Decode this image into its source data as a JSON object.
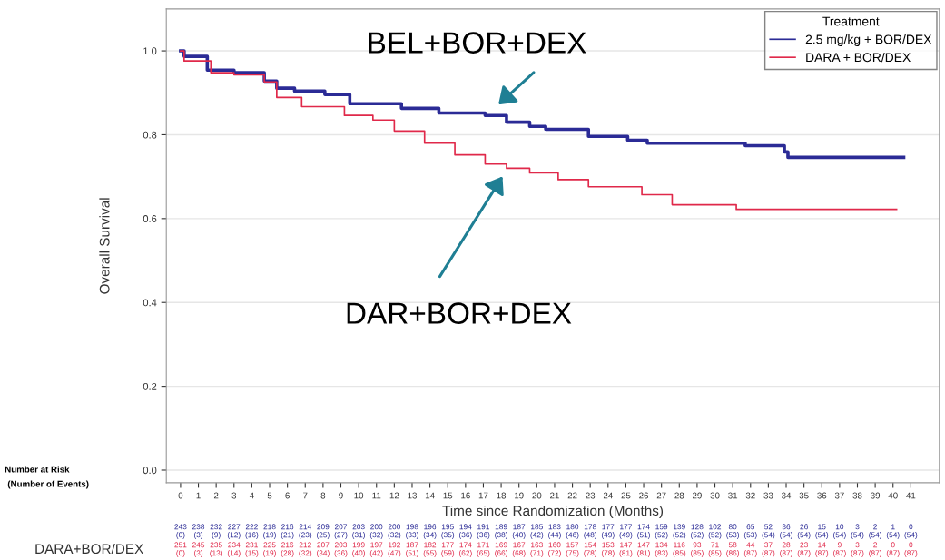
{
  "chart_data": {
    "type": "step",
    "xlabel": "Time since Randomization (Months)",
    "ylabel": "Overall Survival",
    "legend_title": "Treatment",
    "legend": "top right",
    "grid": "y",
    "xlim": [
      -0.8,
      42.6
    ],
    "ylim": [
      -0.03,
      1.1
    ],
    "xticks": [
      0,
      1,
      2,
      3,
      4,
      5,
      6,
      7,
      8,
      9,
      10,
      11,
      12,
      13,
      14,
      15,
      16,
      17,
      18,
      19,
      20,
      21,
      22,
      23,
      24,
      25,
      26,
      27,
      28,
      29,
      30,
      31,
      32,
      33,
      34,
      35,
      36,
      37,
      38,
      39,
      40,
      41
    ],
    "yticks": [
      {
        "value": 0,
        "label": "0.0"
      },
      {
        "value": 0.2,
        "label": "0.2"
      },
      {
        "value": 0.4,
        "label": "0.4"
      },
      {
        "value": 0.6,
        "label": "0.6"
      },
      {
        "value": 0.8,
        "label": "0.8"
      },
      {
        "value": 1.0,
        "label": "1.0"
      }
    ],
    "series": [
      {
        "name": "2.5 mg/kg + BOR/DEX",
        "color": "#2b2b96",
        "x": [
          0,
          0.2,
          1.5,
          3,
          4.7,
          5.4,
          6.4,
          8.1,
          9.5,
          12.4,
          14.5,
          17.1,
          18.3,
          19.6,
          20.5,
          22.9,
          25.1,
          26.2,
          31.7,
          33.9,
          34.1,
          40.6
        ],
        "values": [
          1.0,
          0.987,
          0.954,
          0.948,
          0.928,
          0.911,
          0.904,
          0.896,
          0.874,
          0.863,
          0.852,
          0.846,
          0.83,
          0.82,
          0.813,
          0.796,
          0.787,
          0.78,
          0.774,
          0.759,
          0.746,
          0.746
        ]
      },
      {
        "name": "DARA + BOR/DEX",
        "color": "#e0294a",
        "x": [
          0,
          0.2,
          1.7,
          3,
          4.7,
          5.4,
          6.8,
          9.2,
          10.8,
          12,
          13.7,
          15.4,
          17.1,
          18.3,
          19.6,
          21.2,
          22.9,
          25.9,
          27.6,
          31.2,
          40.2
        ],
        "values": [
          1.0,
          0.976,
          0.948,
          0.943,
          0.926,
          0.889,
          0.867,
          0.846,
          0.835,
          0.809,
          0.78,
          0.752,
          0.73,
          0.72,
          0.709,
          0.693,
          0.676,
          0.657,
          0.633,
          0.622,
          0.622
        ]
      }
    ],
    "annotations": [
      "BEL+BOR+DEX",
      "DAR+BOR+DEX",
      "Number at Risk",
      "(Number of Events)",
      "DARA+BOR/DEX",
      "243 238 232 227 222 218 216 214 209 207 203 200 200 198 196 195 194 191 189 187 185 183 180 178 177 177 174 159 139 128 102 80 65 52 36 26 15 10 3 2 1 0",
      "(0) (3) (9) (12) (16) (19) (21) (23) (25) (27) (31) (32) (32) (33) (34) (35) (36) (36) (38) (40) (42) (44) (46) (48) (49) (49) (51) (52) (52) (52) (52) (53) (53) (54) (54) (54) (54) (54) (54) (54) (54) (54)",
      "251 245 235 234 231 225 216 212 207 203 199 197 192 187 182 177 174 171 169 167 163 160 157 154 153 147 147 134 116 93 71 58 44 37 28 23 14 9 3 2 0 0",
      "(0) (3) (13) (14) (15) (19) (28) (32) (34) (36) (40) (42) (47) (51) (55) (59) (62) (65) (66) (68) (71) (72) (75) (78) (78) (81) (81) (83) (85) (85) (85) (86) (87) (87) (87) (87) (87) (87) (87) (87) (87) (87)"
    ]
  }
}
